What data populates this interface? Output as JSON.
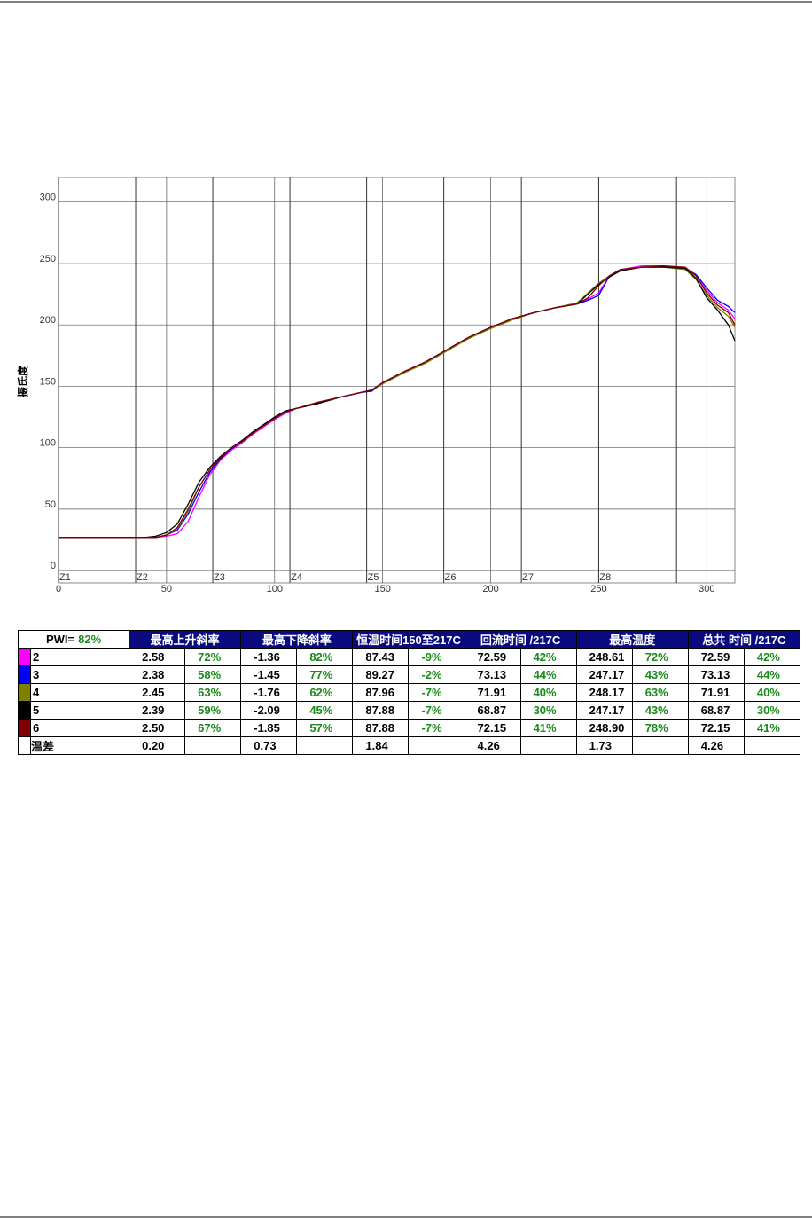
{
  "chart_data": {
    "type": "line",
    "y_label": "摄氏度",
    "xlim": [
      0,
      313
    ],
    "ylim": [
      -10,
      320
    ],
    "xticks": [
      0,
      50,
      100,
      150,
      200,
      250,
      300
    ],
    "yticks": [
      0,
      50,
      100,
      150,
      200,
      250,
      300
    ],
    "grid": true,
    "zones": [
      {
        "x": 0,
        "label": "Z1"
      },
      {
        "x": 35.7,
        "label": "Z2"
      },
      {
        "x": 71.4,
        "label": "Z3"
      },
      {
        "x": 107.1,
        "label": "Z4"
      },
      {
        "x": 142.6,
        "label": "Z5"
      },
      {
        "x": 178.3,
        "label": "Z6"
      },
      {
        "x": 214.2,
        "label": "Z7"
      },
      {
        "x": 250,
        "label": "Z8"
      },
      {
        "x": 286,
        "label": null
      }
    ],
    "x": [
      0,
      20,
      40,
      45,
      50,
      55,
      60,
      65,
      70,
      75,
      80,
      85,
      90,
      95,
      100,
      105,
      110,
      120,
      130,
      140,
      145,
      150,
      160,
      170,
      180,
      190,
      200,
      210,
      220,
      230,
      240,
      245,
      250,
      255,
      260,
      270,
      280,
      290,
      295,
      300,
      305,
      310,
      313
    ],
    "series": [
      {
        "name": "2",
        "color": "#ff00ff",
        "values": [
          27,
          27,
          27,
          27,
          28,
          30,
          40,
          60,
          78,
          90,
          98,
          104,
          111,
          117,
          123,
          128,
          132,
          136,
          141,
          145,
          147,
          152,
          162,
          169,
          180,
          190,
          198,
          205,
          210,
          214,
          217,
          221,
          226,
          240,
          245,
          248,
          248,
          246,
          240,
          228,
          218,
          212,
          205
        ]
      },
      {
        "name": "3",
        "color": "#0000ff",
        "values": [
          27,
          27,
          27,
          27,
          29,
          33,
          46,
          64,
          80,
          91,
          99,
          105,
          112,
          118,
          124,
          129,
          132,
          136,
          141,
          145,
          146,
          153,
          162,
          170,
          180,
          190,
          198,
          205,
          210,
          214,
          217,
          220,
          224,
          240,
          245,
          247,
          248,
          246,
          241,
          230,
          220,
          215,
          210
        ]
      },
      {
        "name": "4",
        "color": "#808000",
        "values": [
          27,
          27,
          27,
          27,
          29,
          34,
          48,
          68,
          82,
          92,
          100,
          105,
          112,
          118,
          124,
          129,
          132,
          136,
          141,
          145,
          147,
          152,
          161,
          169,
          179,
          189,
          197,
          204,
          210,
          214,
          218,
          226,
          234,
          240,
          244,
          247,
          247,
          245,
          237,
          224,
          214,
          207,
          198
        ]
      },
      {
        "name": "5",
        "color": "#000000",
        "values": [
          27,
          27,
          27,
          28,
          31,
          38,
          54,
          72,
          84,
          93,
          100,
          106,
          113,
          119,
          125,
          130,
          132,
          136,
          141,
          145,
          147,
          153,
          162,
          170,
          180,
          190,
          198,
          205,
          210,
          214,
          217,
          225,
          233,
          239,
          244,
          247,
          247,
          246,
          238,
          222,
          212,
          200,
          187
        ]
      },
      {
        "name": "6",
        "color": "#800000",
        "values": [
          27,
          27,
          27,
          27,
          29,
          35,
          50,
          68,
          82,
          92,
          100,
          105,
          112,
          118,
          124,
          129,
          132,
          137,
          141,
          145,
          147,
          153,
          162,
          170,
          180,
          190,
          198,
          205,
          210,
          214,
          217,
          222,
          232,
          240,
          245,
          247,
          248,
          247,
          240,
          226,
          216,
          210,
          200
        ]
      }
    ]
  },
  "table": {
    "pwi_label": "PWI=",
    "pwi": "82%",
    "headers": [
      "最高上升斜率",
      "最高下降斜率",
      "恒温时间150至217C",
      "回流时间 /217C",
      "最高温度",
      "总共 时间 /217C"
    ],
    "rows": [
      [
        "2.58",
        "72%",
        "-1.36",
        "82%",
        "87.43",
        "-9%",
        "72.59",
        "42%",
        "248.61",
        "72%",
        "72.59",
        "42%"
      ],
      [
        "2.38",
        "58%",
        "-1.45",
        "77%",
        "89.27",
        "-2%",
        "73.13",
        "44%",
        "247.17",
        "43%",
        "73.13",
        "44%"
      ],
      [
        "2.45",
        "63%",
        "-1.76",
        "62%",
        "87.96",
        "-7%",
        "71.91",
        "40%",
        "248.17",
        "63%",
        "71.91",
        "40%"
      ],
      [
        "2.39",
        "59%",
        "-2.09",
        "45%",
        "87.88",
        "-7%",
        "68.87",
        "30%",
        "247.17",
        "43%",
        "68.87",
        "30%"
      ],
      [
        "2.50",
        "67%",
        "-1.85",
        "57%",
        "87.88",
        "-7%",
        "72.15",
        "41%",
        "248.90",
        "78%",
        "72.15",
        "41%"
      ]
    ],
    "diff_label": "温差",
    "diff": [
      "0.20",
      "0.73",
      "1.84",
      "4.26",
      "1.73",
      "4.26"
    ]
  }
}
